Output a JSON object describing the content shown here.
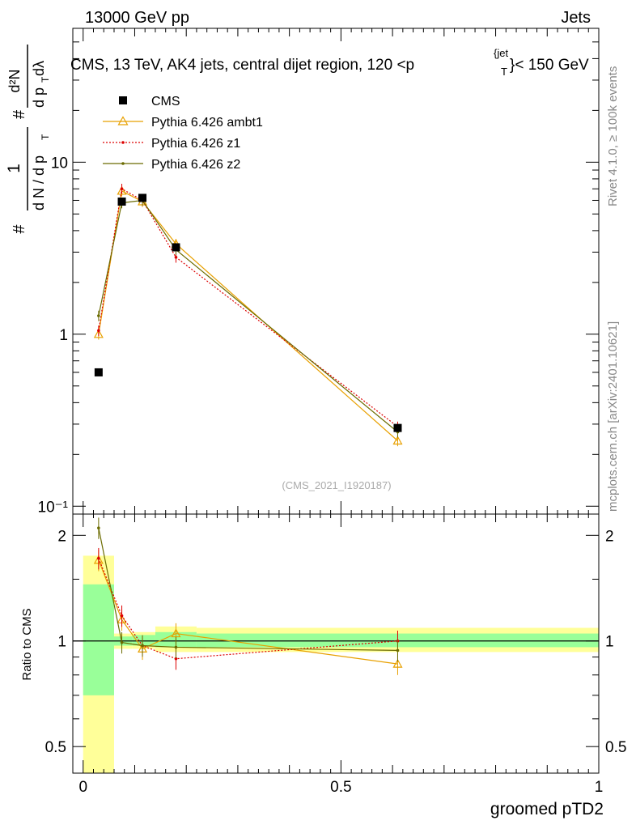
{
  "header": {
    "left": "13000 GeV pp",
    "right": "Jets"
  },
  "title": {
    "main": "CMS, 13 TeV, AK4 jets, central dijet region, 120 <p",
    "sub_T": "T",
    "sup_jet": "{jet",
    "tail": "}< 150 GeV"
  },
  "side_labels": {
    "rivet": "Rivet 4.1.0, ≥ 100k events",
    "mcplots": "mcplots.cern.ch [arXiv:2401.10621]"
  },
  "watermark": "(CMS_2021_I1920187)",
  "ylabel_top": {
    "hash1": "#",
    "one": "1",
    "dN_dpT": "d N / d p",
    "sub_T": "T",
    "hash2": "#",
    "d2N": "d²N",
    "dpT_dlambda": "d p",
    "sub_T2": "T",
    "dlambda": " dλ"
  },
  "ylabel_bottom": "Ratio to CMS",
  "xlabel": "groomed pTD2",
  "legend": [
    {
      "label": "CMS"
    },
    {
      "label": "Pythia 6.426 ambt1"
    },
    {
      "label": "Pythia 6.426 z1"
    },
    {
      "label": "Pythia 6.426 z2"
    }
  ],
  "colors": {
    "data": "#000000",
    "ambt1": "#e8a000",
    "z1": "#dd0000",
    "z2": "#6b6b00",
    "band_inner": "#99ff99",
    "band_outer": "#ffff99"
  },
  "chart_data": {
    "type": "line",
    "xlim": [
      -0.02,
      1.0
    ],
    "top_panel": {
      "yscale": "log",
      "ylim": [
        0.09,
        60
      ],
      "y_ticks": [
        "10⁻¹",
        "1",
        "10"
      ],
      "series": [
        {
          "name": "CMS",
          "key": "data",
          "x": [
            0.03,
            0.075,
            0.115,
            0.18,
            0.61
          ],
          "y": [
            0.6,
            5.9,
            6.2,
            3.2,
            0.285
          ]
        },
        {
          "name": "Pythia 6.426 ambt1",
          "key": "ambt1",
          "x": [
            0.03,
            0.075,
            0.115,
            0.18,
            0.61
          ],
          "y": [
            1.0,
            6.8,
            5.9,
            3.35,
            0.24
          ]
        },
        {
          "name": "Pythia 6.426 z1",
          "key": "z1",
          "x": [
            0.03,
            0.075,
            0.115,
            0.18,
            0.61
          ],
          "y": [
            1.05,
            7.0,
            6.0,
            2.8,
            0.29
          ]
        },
        {
          "name": "Pythia 6.426 z2",
          "key": "z2",
          "x": [
            0.03,
            0.075,
            0.115,
            0.18,
            0.61
          ],
          "y": [
            1.28,
            5.8,
            6.0,
            3.1,
            0.27
          ]
        }
      ]
    },
    "bottom_panel": {
      "yscale": "log",
      "ylim": [
        0.42,
        2.3
      ],
      "y_ticks": [
        "0.5",
        "1",
        "2"
      ],
      "x_ticks": [
        "0",
        "0.5",
        "1"
      ],
      "uncertainty_bands": [
        {
          "x": [
            0.0,
            0.06
          ],
          "inner": [
            0.7,
            1.45
          ],
          "outer": [
            0.3,
            1.75
          ]
        },
        {
          "x": [
            0.06,
            0.095
          ],
          "inner": [
            0.97,
            1.03
          ],
          "outer": [
            0.95,
            1.05
          ]
        },
        {
          "x": [
            0.095,
            0.14
          ],
          "inner": [
            0.97,
            1.04
          ],
          "outer": [
            0.95,
            1.06
          ]
        },
        {
          "x": [
            0.14,
            0.22
          ],
          "inner": [
            0.96,
            1.06
          ],
          "outer": [
            0.93,
            1.1
          ]
        },
        {
          "x": [
            0.22,
            1.0
          ],
          "inner": [
            0.96,
            1.05
          ],
          "outer": [
            0.93,
            1.09
          ]
        }
      ],
      "series": [
        {
          "name": "Pythia 6.426 ambt1",
          "key": "ambt1",
          "x": [
            0.03,
            0.075,
            0.115,
            0.18,
            0.61
          ],
          "y": [
            1.7,
            1.15,
            0.95,
            1.05,
            0.86
          ]
        },
        {
          "name": "Pythia 6.426 z1",
          "key": "z1",
          "x": [
            0.03,
            0.075,
            0.115,
            0.18,
            0.61
          ],
          "y": [
            1.72,
            1.18,
            0.97,
            0.89,
            1.0
          ]
        },
        {
          "name": "Pythia 6.426 z2",
          "key": "z2",
          "x": [
            0.03,
            0.075,
            0.115,
            0.18,
            0.61
          ],
          "y": [
            2.1,
            0.99,
            0.97,
            0.96,
            0.94
          ]
        }
      ]
    }
  }
}
